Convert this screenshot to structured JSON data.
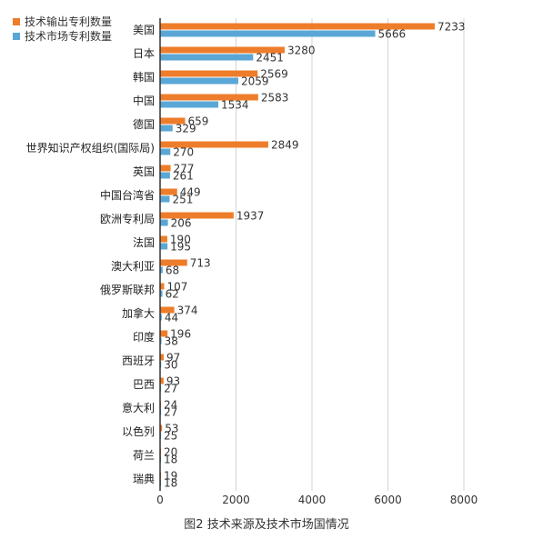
{
  "chart_data": {
    "type": "bar",
    "orientation": "horizontal",
    "categories": [
      "美国",
      "日本",
      "韩国",
      "中国",
      "德国",
      "世界知识产权组织(国际局)",
      "英国",
      "中国台湾省",
      "欧洲专利局",
      "法国",
      "澳大利亚",
      "俄罗斯联邦",
      "加拿大",
      "印度",
      "西班牙",
      "巴西",
      "意大利",
      "以色列",
      "荷兰",
      "瑞典"
    ],
    "series": [
      {
        "name": "技术输出专利数量",
        "color": "#ee7d2b",
        "values": [
          7233,
          3280,
          2569,
          2583,
          659,
          2849,
          277,
          449,
          1937,
          190,
          713,
          107,
          374,
          196,
          97,
          93,
          24,
          53,
          20,
          19
        ]
      },
      {
        "name": "技术市场专利数量",
        "color": "#5aa7d6",
        "values": [
          5666,
          2451,
          2059,
          1534,
          329,
          270,
          261,
          251,
          206,
          195,
          68,
          62,
          44,
          38,
          30,
          27,
          27,
          25,
          18,
          18
        ]
      }
    ],
    "xlim": [
      0,
      8000
    ],
    "xticks": [
      "0",
      "2000",
      "4000",
      "6000",
      "8000"
    ],
    "grid": true,
    "legend_position": "top-left",
    "caption": "图2 技术来源及技术市场国情况"
  }
}
